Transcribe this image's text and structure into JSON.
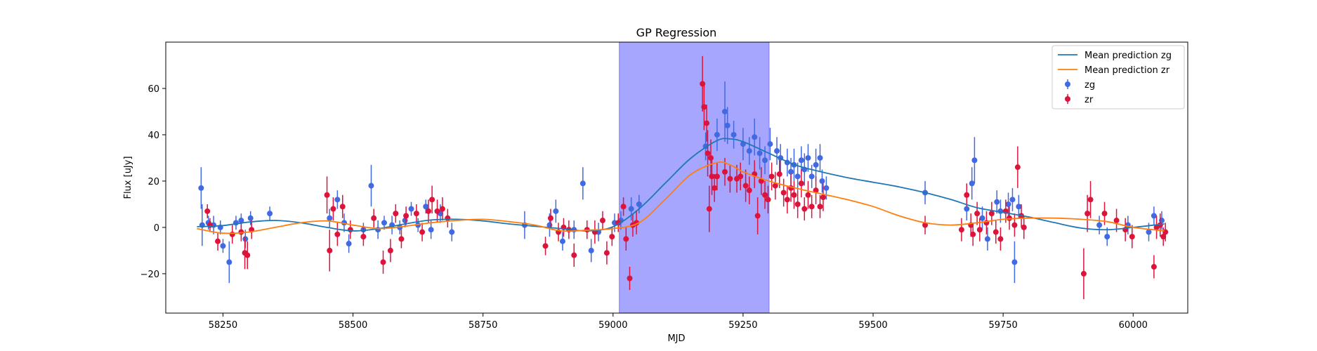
{
  "chart_data": {
    "type": "scatter",
    "title": "GP Regression",
    "xlabel": "MJD",
    "ylabel": "Flux [uJy]",
    "xlim": [
      58140,
      60105
    ],
    "ylim": [
      -37,
      80
    ],
    "xticks": [
      58250,
      58500,
      58750,
      59000,
      59250,
      59500,
      59750,
      60000
    ],
    "yticks": [
      -20,
      0,
      20,
      40,
      60
    ],
    "grid": false,
    "legend_position": "top-right",
    "shaded_region": {
      "x0": 59012,
      "x1": 59300,
      "color": "#a6a6ff"
    },
    "series": [
      {
        "name": "Mean prediction zg",
        "kind": "line",
        "color": "#1f77b4",
        "x": [
          58200,
          58250,
          58300,
          58350,
          58400,
          58450,
          58500,
          58550,
          58600,
          58650,
          58700,
          58750,
          58800,
          58850,
          58900,
          58950,
          59000,
          59050,
          59100,
          59150,
          59200,
          59225,
          59250,
          59300,
          59350,
          59400,
          59450,
          59500,
          59550,
          59600,
          59650,
          59700,
          59750,
          59800,
          59850,
          59900,
          59950,
          60000,
          60060
        ],
        "y": [
          0.3,
          0.8,
          2.3,
          3.0,
          2.0,
          0.0,
          -1.5,
          -0.5,
          1.5,
          3.2,
          3.5,
          2.8,
          1.5,
          0.5,
          -0.5,
          -1.5,
          0.3,
          8.0,
          19.0,
          30.0,
          37.5,
          38.2,
          37.0,
          32.0,
          27.0,
          24.0,
          21.5,
          19.5,
          17.5,
          15.0,
          12.0,
          8.5,
          6.5,
          4.5,
          2.0,
          -0.3,
          -1.0,
          0.0,
          1.5
        ]
      },
      {
        "name": "Mean prediction zr",
        "kind": "line",
        "color": "#ff7f0e",
        "x": [
          58200,
          58250,
          58300,
          58350,
          58400,
          58450,
          58500,
          58550,
          58600,
          58650,
          58700,
          58750,
          58800,
          58850,
          58900,
          58950,
          59000,
          59050,
          59100,
          59150,
          59200,
          59225,
          59250,
          59300,
          59350,
          59400,
          59450,
          59500,
          59550,
          59600,
          59650,
          59700,
          59750,
          59800,
          59850,
          59900,
          59950,
          60000,
          60060
        ],
        "y": [
          -0.5,
          -2.5,
          -2.0,
          0.0,
          2.0,
          2.8,
          1.0,
          -0.5,
          0.5,
          2.0,
          3.0,
          3.5,
          2.5,
          1.0,
          -1.5,
          -1.2,
          -0.5,
          2.0,
          12.0,
          23.0,
          28.0,
          27.0,
          24.0,
          20.0,
          17.0,
          14.5,
          12.0,
          9.0,
          5.0,
          2.0,
          1.0,
          2.0,
          3.5,
          4.0,
          4.0,
          3.5,
          2.5,
          0.0,
          -1.5
        ]
      },
      {
        "name": "zg",
        "kind": "errorbar",
        "color": "#4169e1",
        "points": [
          [
            58208,
            17,
            9
          ],
          [
            58210,
            1,
            9
          ],
          [
            58222,
            2,
            3
          ],
          [
            58232,
            1,
            4
          ],
          [
            58245,
            0,
            3
          ],
          [
            58250,
            -8,
            3
          ],
          [
            58262,
            -15,
            9
          ],
          [
            58275,
            2,
            3
          ],
          [
            58285,
            3,
            3
          ],
          [
            58293,
            -5,
            4
          ],
          [
            58303,
            4,
            3
          ],
          [
            58340,
            6,
            3
          ],
          [
            58455,
            4,
            4
          ],
          [
            58470,
            12,
            4
          ],
          [
            58483,
            2,
            4
          ],
          [
            58492,
            -7,
            4
          ],
          [
            58520,
            -1,
            3
          ],
          [
            58535,
            18,
            9
          ],
          [
            58548,
            -1,
            4
          ],
          [
            58560,
            2,
            3
          ],
          [
            58575,
            1,
            4
          ],
          [
            58590,
            0,
            3
          ],
          [
            58600,
            3,
            3
          ],
          [
            58612,
            8,
            3
          ],
          [
            58625,
            1,
            3
          ],
          [
            58640,
            9,
            3
          ],
          [
            58650,
            -1,
            4
          ],
          [
            58668,
            6,
            4
          ],
          [
            58690,
            -2,
            4
          ],
          [
            58830,
            1,
            6
          ],
          [
            58878,
            1,
            5
          ],
          [
            58890,
            7,
            5
          ],
          [
            58903,
            -6,
            4
          ],
          [
            58925,
            -1,
            4
          ],
          [
            58942,
            19,
            7
          ],
          [
            58958,
            -10,
            5
          ],
          [
            58972,
            -2,
            4
          ],
          [
            59003,
            2,
            4
          ],
          [
            59015,
            3,
            4
          ],
          [
            59035,
            8,
            5
          ],
          [
            59050,
            10,
            4
          ],
          [
            59178,
            35,
            6
          ],
          [
            59200,
            40,
            7
          ],
          [
            59215,
            50,
            13
          ],
          [
            59220,
            44,
            8
          ],
          [
            59232,
            40,
            6
          ],
          [
            59250,
            36,
            7
          ],
          [
            59262,
            33,
            6
          ],
          [
            59272,
            39,
            8
          ],
          [
            59282,
            32,
            7
          ],
          [
            59292,
            29,
            6
          ],
          [
            59302,
            36,
            7
          ],
          [
            59315,
            33,
            6
          ],
          [
            59322,
            30,
            6
          ],
          [
            59335,
            28,
            6
          ],
          [
            59342,
            24,
            6
          ],
          [
            59348,
            27,
            7
          ],
          [
            59355,
            22,
            6
          ],
          [
            59362,
            29,
            6
          ],
          [
            59368,
            25,
            7
          ],
          [
            59375,
            30,
            6
          ],
          [
            59382,
            22,
            5
          ],
          [
            59390,
            27,
            7
          ],
          [
            59398,
            30,
            6
          ],
          [
            59402,
            20,
            5
          ],
          [
            59410,
            17,
            5
          ],
          [
            59600,
            15,
            5
          ],
          [
            59680,
            8,
            5
          ],
          [
            59690,
            19,
            7
          ],
          [
            59695,
            29,
            10
          ],
          [
            59710,
            4,
            5
          ],
          [
            59720,
            -5,
            5
          ],
          [
            59738,
            11,
            5
          ],
          [
            59745,
            7,
            5
          ],
          [
            59760,
            10,
            5
          ],
          [
            59768,
            12,
            5
          ],
          [
            59772,
            -15,
            9
          ],
          [
            59780,
            9,
            5
          ],
          [
            59935,
            1,
            4
          ],
          [
            59950,
            -4,
            4
          ],
          [
            59990,
            1,
            4
          ],
          [
            60030,
            -2,
            4
          ],
          [
            60040,
            5,
            4
          ],
          [
            60055,
            3,
            4
          ]
        ]
      },
      {
        "name": "zr",
        "kind": "errorbar",
        "color": "#dc143c",
        "points": [
          [
            58220,
            7,
            3
          ],
          [
            58225,
            1,
            3
          ],
          [
            58240,
            -6,
            4
          ],
          [
            58268,
            -3,
            4
          ],
          [
            58285,
            -2,
            4
          ],
          [
            58292,
            -11,
            7
          ],
          [
            58297,
            -12,
            6
          ],
          [
            58305,
            -1,
            4
          ],
          [
            58450,
            14,
            8
          ],
          [
            58455,
            -10,
            9
          ],
          [
            58462,
            8,
            5
          ],
          [
            58470,
            -3,
            5
          ],
          [
            58480,
            9,
            5
          ],
          [
            58495,
            -1,
            4
          ],
          [
            58520,
            -4,
            4
          ],
          [
            58540,
            4,
            4
          ],
          [
            58558,
            -15,
            5
          ],
          [
            58572,
            -10,
            5
          ],
          [
            58582,
            6,
            4
          ],
          [
            58593,
            -5,
            4
          ],
          [
            58602,
            5,
            4
          ],
          [
            58622,
            6,
            4
          ],
          [
            58633,
            -2,
            4
          ],
          [
            58645,
            7,
            5
          ],
          [
            58652,
            12,
            6
          ],
          [
            58662,
            7,
            5
          ],
          [
            58672,
            8,
            5
          ],
          [
            58682,
            4,
            4
          ],
          [
            58870,
            -8,
            4
          ],
          [
            58880,
            4,
            4
          ],
          [
            58895,
            -2,
            4
          ],
          [
            58905,
            0,
            4
          ],
          [
            58915,
            -1,
            4
          ],
          [
            58925,
            -12,
            5
          ],
          [
            58950,
            -1,
            4
          ],
          [
            58965,
            -2,
            5
          ],
          [
            58980,
            3,
            4
          ],
          [
            58988,
            -11,
            5
          ],
          [
            58998,
            -4,
            4
          ],
          [
            59010,
            2,
            4
          ],
          [
            59020,
            9,
            4
          ],
          [
            59025,
            -5,
            5
          ],
          [
            59032,
            -22,
            5
          ],
          [
            59038,
            1,
            5
          ],
          [
            59045,
            2,
            5
          ],
          [
            59172,
            62,
            12
          ],
          [
            59175,
            52,
            10
          ],
          [
            59180,
            45,
            8
          ],
          [
            59182,
            32,
            10
          ],
          [
            59185,
            8,
            10
          ],
          [
            59188,
            30,
            8
          ],
          [
            59190,
            22,
            8
          ],
          [
            59195,
            17,
            6
          ],
          [
            59200,
            22,
            6
          ],
          [
            59215,
            24,
            6
          ],
          [
            59225,
            21,
            6
          ],
          [
            59238,
            21,
            6
          ],
          [
            59245,
            22,
            6
          ],
          [
            59255,
            18,
            7
          ],
          [
            59262,
            16,
            6
          ],
          [
            59272,
            23,
            6
          ],
          [
            59278,
            5,
            8
          ],
          [
            59285,
            20,
            6
          ],
          [
            59292,
            14,
            6
          ],
          [
            59298,
            12,
            6
          ],
          [
            59305,
            22,
            6
          ],
          [
            59312,
            18,
            6
          ],
          [
            59320,
            23,
            6
          ],
          [
            59328,
            15,
            6
          ],
          [
            59335,
            12,
            6
          ],
          [
            59342,
            17,
            6
          ],
          [
            59348,
            14,
            6
          ],
          [
            59355,
            10,
            6
          ],
          [
            59362,
            19,
            6
          ],
          [
            59368,
            8,
            5
          ],
          [
            59375,
            14,
            6
          ],
          [
            59382,
            9,
            5
          ],
          [
            59390,
            16,
            6
          ],
          [
            59398,
            9,
            5
          ],
          [
            59404,
            13,
            6
          ],
          [
            59600,
            1,
            4
          ],
          [
            59670,
            -1,
            5
          ],
          [
            59680,
            14,
            5
          ],
          [
            59688,
            1,
            5
          ],
          [
            59692,
            -3,
            5
          ],
          [
            59700,
            6,
            5
          ],
          [
            59705,
            -1,
            5
          ],
          [
            59718,
            2,
            5
          ],
          [
            59728,
            6,
            5
          ],
          [
            59736,
            -2,
            5
          ],
          [
            59745,
            -5,
            5
          ],
          [
            59755,
            7,
            5
          ],
          [
            59762,
            4,
            5
          ],
          [
            59772,
            1,
            5
          ],
          [
            59778,
            26,
            9
          ],
          [
            59785,
            5,
            5
          ],
          [
            59790,
            0,
            5
          ],
          [
            59905,
            -20,
            11
          ],
          [
            59912,
            6,
            8
          ],
          [
            59918,
            12,
            8
          ],
          [
            59945,
            6,
            5
          ],
          [
            59968,
            3,
            5
          ],
          [
            59985,
            -1,
            5
          ],
          [
            59998,
            -4,
            5
          ],
          [
            60040,
            -17,
            5
          ],
          [
            60045,
            0,
            5
          ],
          [
            60052,
            1,
            5
          ],
          [
            60058,
            -4,
            4
          ],
          [
            60062,
            -2,
            4
          ]
        ]
      }
    ]
  }
}
